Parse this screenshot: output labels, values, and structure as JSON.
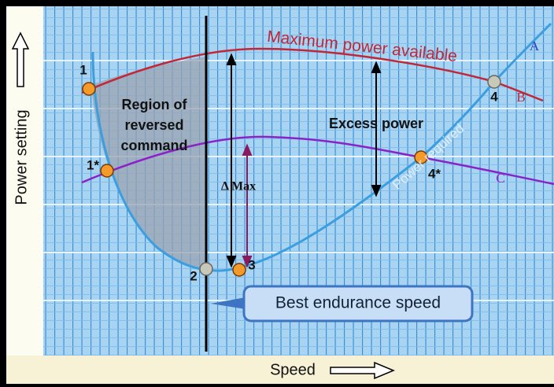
{
  "diagram": {
    "axis_labels": {
      "y": "Power setting",
      "x": "Speed"
    },
    "curve_labels": {
      "max_power": "Maximum power available",
      "power_required": "Power required",
      "a": "A",
      "b": "B",
      "c": "C"
    },
    "annotations": {
      "region": [
        "Region of",
        "reversed",
        "command"
      ],
      "excess": "Excess power",
      "delta": "Δ Max",
      "best_endurance": "Best endurance speed"
    },
    "points": [
      "1",
      "1*",
      "2",
      "3",
      "4",
      "4*"
    ]
  }
}
